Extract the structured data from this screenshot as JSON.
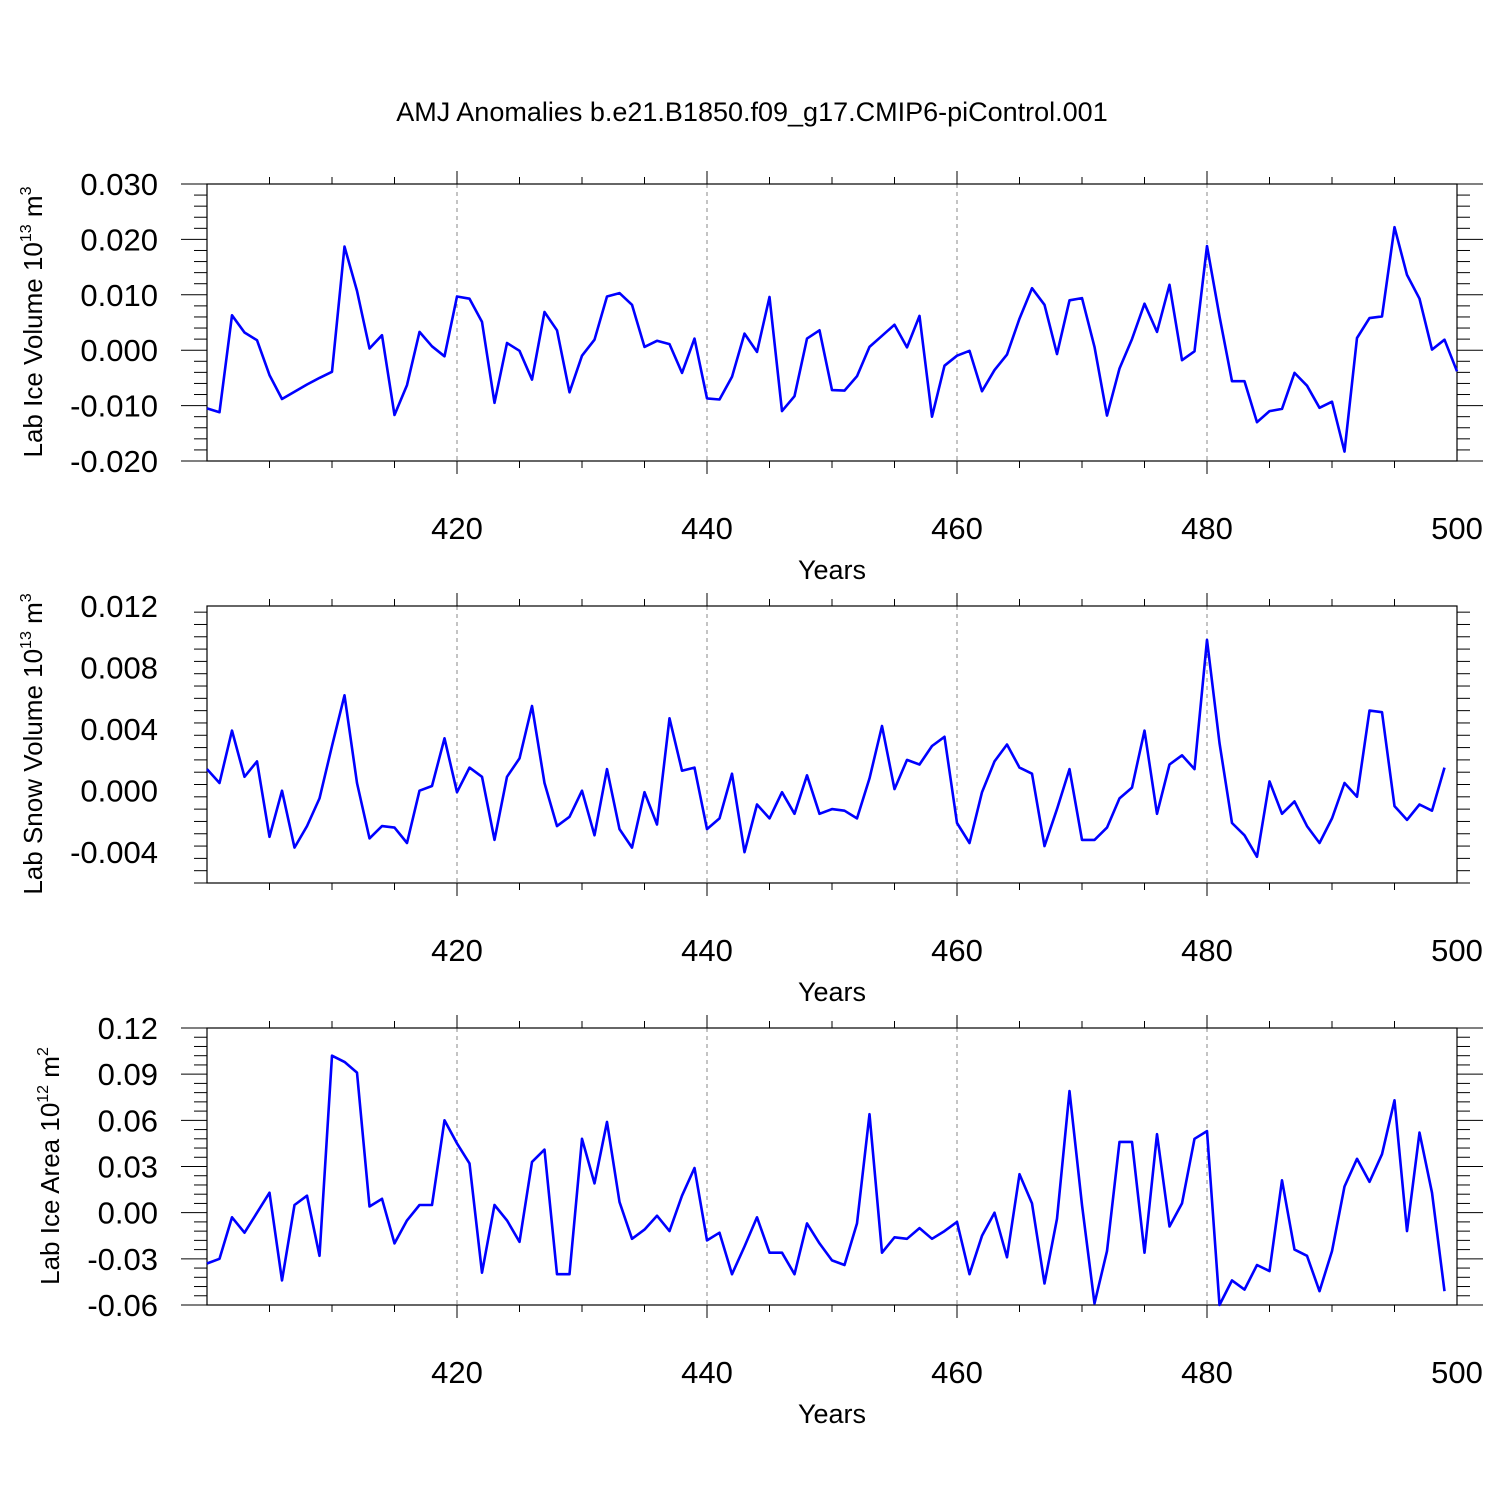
{
  "page_title": "AMJ Anomalies b.e21.B1850.f09_g17.CMIP6-piControl.001",
  "line_color": "#0000ff",
  "chart_data": [
    {
      "type": "line",
      "ylabel_main": "Lab Ice Volume 10",
      "ylabel_exp": "13",
      "ylabel_unit": " m",
      "ylabel_unit_exp": "3",
      "xlabel": "Years",
      "xlim": [
        400,
        500
      ],
      "ylim": [
        -0.02,
        0.03
      ],
      "grid": "dashed vertical at labeled x ticks",
      "x_ticks": [
        420,
        440,
        460,
        480,
        500
      ],
      "x_tick_labels": [
        "420",
        "440",
        "460",
        "480",
        "500"
      ],
      "y_ticks": [
        -0.02,
        -0.01,
        0.0,
        0.01,
        0.02,
        0.03
      ],
      "y_tick_labels": [
        "-0.020",
        "-0.010",
        "0.000",
        "0.010",
        "0.020",
        "0.030"
      ],
      "x_start": 400,
      "values": [
        -0.0105,
        -0.0112,
        0.0063,
        0.0032,
        0.0018,
        -0.0045,
        -0.0088,
        -0.0075,
        -0.0062,
        -0.005,
        -0.0039,
        0.0187,
        0.0107,
        0.0003,
        0.0027,
        -0.0117,
        -0.0063,
        0.0033,
        0.0007,
        -0.0011,
        0.0097,
        0.0093,
        0.0051,
        -0.0095,
        0.0013,
        -0.0001,
        -0.0053,
        0.0069,
        0.0036,
        -0.0076,
        -0.001,
        0.0019,
        0.0097,
        0.0103,
        0.0082,
        0.0006,
        0.0017,
        0.0011,
        -0.0041,
        0.0021,
        -0.0087,
        -0.0089,
        -0.0048,
        0.003,
        -0.0003,
        0.0096,
        -0.011,
        -0.0083,
        0.0021,
        0.0036,
        -0.0072,
        -0.0073,
        -0.0047,
        0.0006,
        0.0026,
        0.0046,
        0.0005,
        0.0062,
        -0.012,
        -0.0028,
        -0.001,
        -0.0001,
        -0.0074,
        -0.0036,
        -0.0008,
        0.0057,
        0.0112,
        0.0082,
        -0.0007,
        0.009,
        0.0094,
        0.0006,
        -0.0118,
        -0.0033,
        0.002,
        0.0084,
        0.0033,
        0.0118,
        -0.0018,
        -0.0002,
        0.0188,
        0.0061,
        -0.0056,
        -0.0056,
        -0.013,
        -0.011,
        -0.0106,
        -0.0041,
        -0.0064,
        -0.0104,
        -0.0093,
        -0.0183,
        0.0022,
        0.0058,
        0.0061,
        0.0222,
        0.0136,
        0.0093,
        0.0001,
        0.0019,
        -0.0038
      ]
    },
    {
      "type": "line",
      "ylabel_main": "Lab Snow Volume 10",
      "ylabel_exp": "13",
      "ylabel_unit": " m",
      "ylabel_unit_exp": "3",
      "xlabel": "Years",
      "xlim": [
        400,
        500
      ],
      "ylim": [
        -0.006,
        0.012
      ],
      "grid": "dashed vertical at labeled x ticks",
      "x_ticks": [
        420,
        440,
        460,
        480,
        500
      ],
      "x_tick_labels": [
        "420",
        "440",
        "460",
        "480",
        "500"
      ],
      "y_ticks": [
        -0.004,
        0.0,
        0.004,
        0.008,
        0.012
      ],
      "y_tick_labels": [
        "-0.004",
        "0.000",
        "0.004",
        "0.008",
        "0.012"
      ],
      "x_start": 400,
      "values": [
        0.0014,
        0.0005,
        0.0039,
        0.0009,
        0.0019,
        -0.003,
        0.0,
        -0.0037,
        -0.0023,
        -0.0005,
        0.0029,
        0.0062,
        0.0005,
        -0.0031,
        -0.0023,
        -0.0024,
        -0.0034,
        0.0,
        0.0003,
        0.0034,
        -0.0001,
        0.0015,
        0.0009,
        -0.0032,
        0.0009,
        0.0021,
        0.0055,
        0.0005,
        -0.0023,
        -0.0017,
        0.0,
        -0.0029,
        0.0014,
        -0.0025,
        -0.0037,
        -0.0001,
        -0.0022,
        0.0047,
        0.0013,
        0.0015,
        -0.0025,
        -0.0018,
        0.0011,
        -0.004,
        -0.0009,
        -0.0018,
        -0.0001,
        -0.0015,
        0.001,
        -0.0015,
        -0.0012,
        -0.0013,
        -0.0018,
        0.0008,
        0.0042,
        0.0001,
        0.002,
        0.0017,
        0.0029,
        0.0035,
        -0.0021,
        -0.0034,
        -0.0001,
        0.0019,
        0.003,
        0.0015,
        0.0011,
        -0.0036,
        -0.0012,
        0.0014,
        -0.0032,
        -0.0032,
        -0.0024,
        -0.0005,
        0.0002,
        0.0039,
        -0.0015,
        0.0017,
        0.0023,
        0.0014,
        0.0098,
        0.0031,
        -0.0021,
        -0.0029,
        -0.0043,
        0.0006,
        -0.0015,
        -0.0007,
        -0.0023,
        -0.0034,
        -0.0018,
        0.0005,
        -0.0004,
        0.0052,
        0.0051,
        -0.001,
        -0.0019,
        -0.0009,
        -0.0013,
        0.0015
      ]
    },
    {
      "type": "line",
      "ylabel_main": "Lab Ice Area 10",
      "ylabel_exp": "12",
      "ylabel_unit": " m",
      "ylabel_unit_exp": "2",
      "xlabel": "Years",
      "xlim": [
        400,
        500
      ],
      "ylim": [
        -0.06,
        0.12
      ],
      "grid": "dashed vertical at labeled x ticks",
      "x_ticks": [
        420,
        440,
        460,
        480,
        500
      ],
      "x_tick_labels": [
        "420",
        "440",
        "460",
        "480",
        "500"
      ],
      "y_ticks": [
        -0.06,
        -0.03,
        0.0,
        0.03,
        0.06,
        0.09,
        0.12
      ],
      "y_tick_labels": [
        "-0.06",
        "-0.03",
        "0.00",
        "0.03",
        "0.06",
        "0.09",
        "0.12"
      ],
      "x_start": 400,
      "values": [
        -0.033,
        -0.03,
        -0.003,
        -0.013,
        0.0,
        0.013,
        -0.044,
        0.005,
        0.011,
        -0.028,
        0.102,
        0.098,
        0.091,
        0.004,
        0.009,
        -0.02,
        -0.005,
        0.005,
        0.005,
        0.06,
        0.045,
        0.032,
        -0.039,
        0.005,
        -0.005,
        -0.019,
        0.033,
        0.041,
        -0.04,
        -0.04,
        0.048,
        0.019,
        0.059,
        0.007,
        -0.017,
        -0.011,
        -0.002,
        -0.012,
        0.011,
        0.029,
        -0.018,
        -0.013,
        -0.04,
        -0.022,
        -0.003,
        -0.026,
        -0.026,
        -0.04,
        -0.007,
        -0.02,
        -0.031,
        -0.034,
        -0.007,
        0.064,
        -0.026,
        -0.016,
        -0.017,
        -0.01,
        -0.017,
        -0.012,
        -0.006,
        -0.04,
        -0.015,
        0.0,
        -0.029,
        0.025,
        0.006,
        -0.046,
        -0.004,
        0.079,
        0.005,
        -0.059,
        -0.025,
        0.046,
        0.046,
        -0.026,
        0.051,
        -0.009,
        0.006,
        0.048,
        0.053,
        -0.06,
        -0.044,
        -0.05,
        -0.034,
        -0.038,
        0.021,
        -0.024,
        -0.028,
        -0.051,
        -0.025,
        0.017,
        0.035,
        0.02,
        0.038,
        0.073,
        -0.012,
        0.052,
        0.013,
        -0.051
      ]
    }
  ]
}
